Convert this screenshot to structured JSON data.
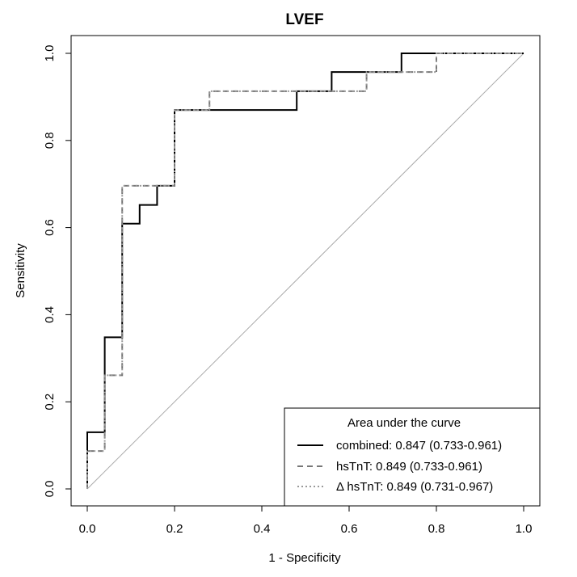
{
  "chart_data": {
    "type": "line",
    "title": "LVEF",
    "xlabel": "1 - Specificity",
    "ylabel": "Sensitivity",
    "xlim": [
      0,
      1
    ],
    "ylim": [
      0,
      1
    ],
    "x_ticks": [
      "0.0",
      "0.2",
      "0.4",
      "0.6",
      "0.8",
      "1.0"
    ],
    "y_ticks": [
      "0.0",
      "0.2",
      "0.4",
      "0.6",
      "0.8",
      "1.0"
    ],
    "grid": false,
    "diagonal_reference": true,
    "legend": {
      "placement": "bottom-right",
      "title": "Area under the curve",
      "entries": [
        "combined: 0.847 (0.733-0.961)",
        "hsTnT: 0.849 (0.733-0.961)",
        "Δ hsTnT: 0.849 (0.731-0.967)"
      ]
    },
    "series": [
      {
        "style": "solid",
        "color": "#000000",
        "points": [
          [
            0,
            0
          ],
          [
            0,
            0.13
          ],
          [
            0.04,
            0.13
          ],
          [
            0.04,
            0.348
          ],
          [
            0.08,
            0.348
          ],
          [
            0.08,
            0.609
          ],
          [
            0.12,
            0.609
          ],
          [
            0.12,
            0.652
          ],
          [
            0.16,
            0.652
          ],
          [
            0.16,
            0.696
          ],
          [
            0.2,
            0.696
          ],
          [
            0.2,
            0.87
          ],
          [
            0.48,
            0.87
          ],
          [
            0.48,
            0.913
          ],
          [
            0.56,
            0.913
          ],
          [
            0.56,
            0.957
          ],
          [
            0.72,
            0.957
          ],
          [
            0.72,
            1.0
          ],
          [
            1.0,
            1.0
          ]
        ]
      },
      {
        "style": "dashed",
        "color": "#777777",
        "points": [
          [
            0,
            0
          ],
          [
            0,
            0.087
          ],
          [
            0.04,
            0.087
          ],
          [
            0.04,
            0.261
          ],
          [
            0.08,
            0.261
          ],
          [
            0.08,
            0.696
          ],
          [
            0.2,
            0.696
          ],
          [
            0.2,
            0.87
          ],
          [
            0.28,
            0.87
          ],
          [
            0.28,
            0.913
          ],
          [
            0.64,
            0.913
          ],
          [
            0.64,
            0.957
          ],
          [
            0.8,
            0.957
          ],
          [
            0.8,
            1.0
          ],
          [
            1.0,
            1.0
          ]
        ]
      },
      {
        "style": "dotted",
        "color": "#999999",
        "points": [
          [
            0,
            0
          ],
          [
            0,
            0.087
          ],
          [
            0.04,
            0.087
          ],
          [
            0.04,
            0.261
          ],
          [
            0.08,
            0.261
          ],
          [
            0.08,
            0.696
          ],
          [
            0.2,
            0.696
          ],
          [
            0.2,
            0.87
          ],
          [
            0.28,
            0.87
          ],
          [
            0.28,
            0.913
          ],
          [
            0.64,
            0.913
          ],
          [
            0.64,
            0.957
          ],
          [
            0.8,
            0.957
          ],
          [
            0.8,
            1.0
          ],
          [
            1.0,
            1.0
          ]
        ]
      }
    ]
  }
}
